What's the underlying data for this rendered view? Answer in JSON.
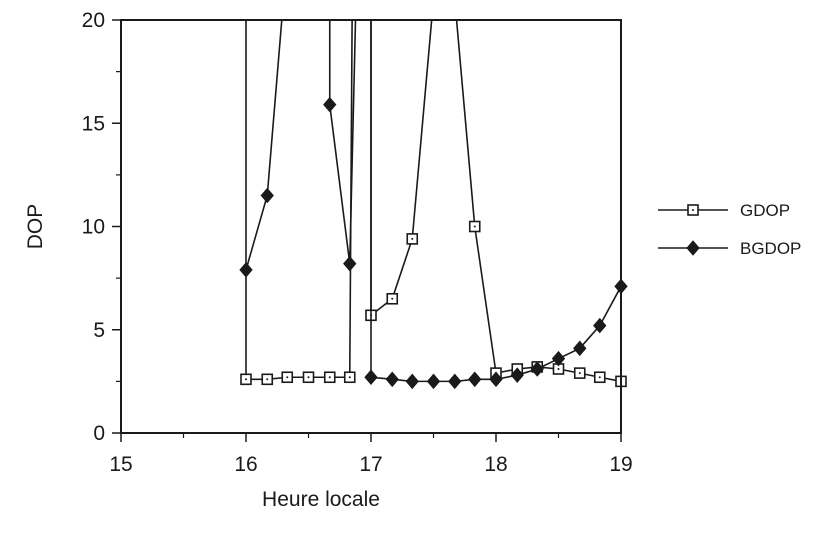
{
  "chart_data": {
    "type": "line",
    "xlabel": "Heure locale",
    "ylabel": "DOP",
    "xlim": [
      15,
      19
    ],
    "ylim": [
      0,
      20
    ],
    "x_ticks": [
      "15",
      "16",
      "17",
      "18",
      "19"
    ],
    "y_ticks": [
      "0",
      "5",
      "10",
      "15",
      "20"
    ],
    "grid": false,
    "legend_position": "right",
    "series": [
      {
        "name": "GDOP",
        "marker": "open-square",
        "color": "#1a1a1a",
        "segments": [
          [
            [
              16.0,
              21
            ],
            [
              16.0,
              2.6
            ],
            [
              16.17,
              2.6
            ],
            [
              16.33,
              2.7
            ],
            [
              16.5,
              2.7
            ],
            [
              16.67,
              2.7
            ],
            [
              16.83,
              2.7
            ],
            [
              16.85,
              21
            ]
          ],
          [
            [
              17.0,
              21
            ],
            [
              17.0,
              5.7
            ],
            [
              17.17,
              6.5
            ],
            [
              17.33,
              9.4
            ],
            [
              17.5,
              21
            ]
          ],
          [
            [
              17.67,
              21
            ],
            [
              17.83,
              10.0
            ],
            [
              18.0,
              2.9
            ],
            [
              18.17,
              3.1
            ],
            [
              18.33,
              3.2
            ],
            [
              18.5,
              3.1
            ],
            [
              18.67,
              2.9
            ],
            [
              18.83,
              2.7
            ],
            [
              19.0,
              2.5
            ]
          ]
        ]
      },
      {
        "name": "BGDOP",
        "marker": "filled-diamond",
        "color": "#1a1a1a",
        "segments": [
          [
            [
              16.0,
              7.9
            ],
            [
              16.17,
              11.5
            ],
            [
              16.3,
              21
            ]
          ],
          [
            [
              16.67,
              21
            ],
            [
              16.67,
              15.9
            ],
            [
              16.83,
              8.2
            ],
            [
              16.88,
              21
            ]
          ],
          [
            [
              17.0,
              21
            ],
            [
              17.0,
              2.7
            ],
            [
              17.17,
              2.6
            ],
            [
              17.33,
              2.5
            ],
            [
              17.5,
              2.5
            ],
            [
              17.67,
              2.5
            ],
            [
              17.83,
              2.6
            ],
            [
              18.0,
              2.6
            ],
            [
              18.17,
              2.8
            ],
            [
              18.33,
              3.1
            ],
            [
              18.5,
              3.6
            ],
            [
              18.67,
              4.1
            ],
            [
              18.83,
              5.2
            ],
            [
              19.0,
              7.1
            ]
          ]
        ]
      }
    ]
  }
}
